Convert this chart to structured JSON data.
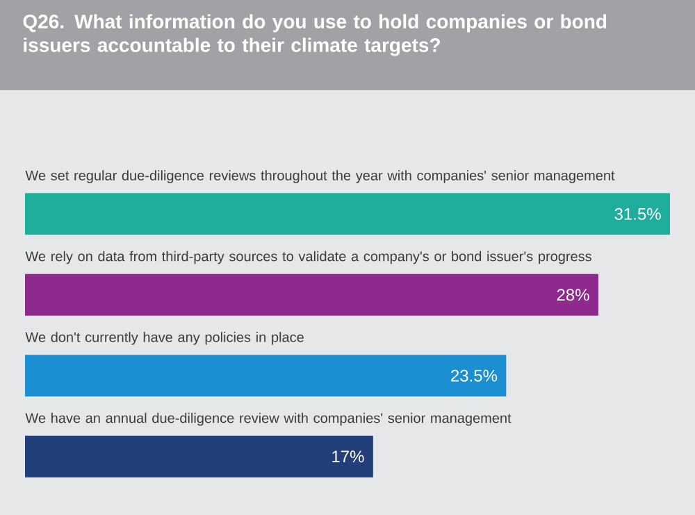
{
  "chart_data": {
    "type": "bar",
    "orientation": "horizontal",
    "title": "Q26. What information do you use to hold companies or bond issuers accountable to their climate targets?",
    "categories": [
      "We set regular due-diligence reviews throughout the year with companies' senior management",
      "We rely on data from third-party sources to validate a company's or bond issuer's progress",
      "We don't currently have any policies in place",
      "We have an annual due-diligence review with companies' senior management"
    ],
    "values": [
      31.5,
      28,
      23.5,
      17
    ],
    "value_labels": [
      "31.5%",
      "28%",
      "23.5%",
      "17%"
    ],
    "colors": [
      "#1fae9b",
      "#8e2a8e",
      "#1b8fd2",
      "#233f7a"
    ]
  }
}
